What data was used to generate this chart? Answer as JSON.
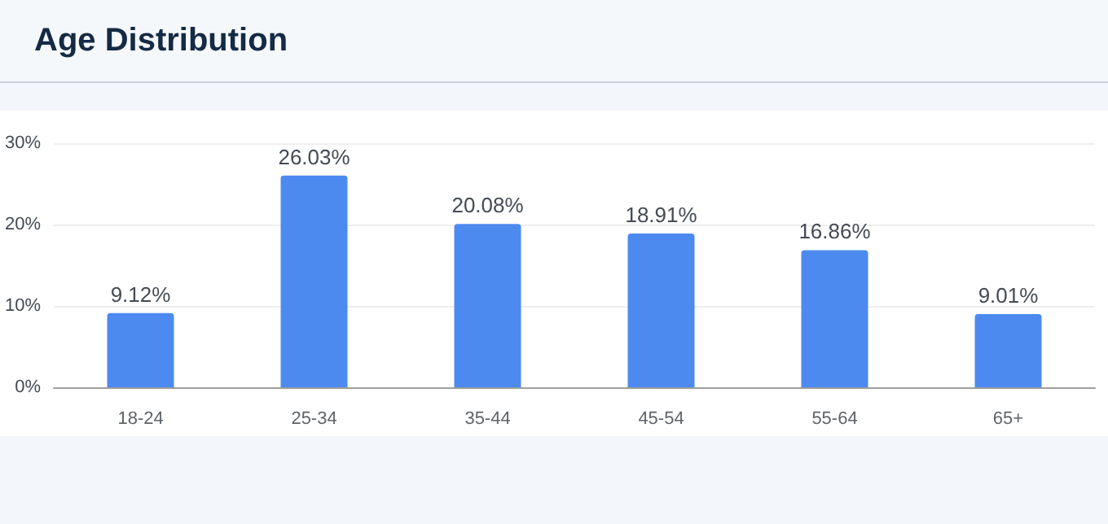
{
  "chart_data": {
    "type": "bar",
    "title": "Age Distribution",
    "categories": [
      "18-24",
      "25-34",
      "35-44",
      "45-54",
      "55-64",
      "65+"
    ],
    "values": [
      9.12,
      26.03,
      20.08,
      18.91,
      16.86,
      9.01
    ],
    "value_labels": [
      "9.12%",
      "26.03%",
      "20.08%",
      "18.91%",
      "16.86%",
      "9.01%"
    ],
    "color": "#4d8af0",
    "ylim": [
      0,
      30
    ],
    "yticks": [
      {
        "value": 0,
        "label": "0%"
      },
      {
        "value": 10,
        "label": "10%"
      },
      {
        "value": 20,
        "label": "20%"
      },
      {
        "value": 30,
        "label": "30%"
      }
    ],
    "grid": "y"
  }
}
